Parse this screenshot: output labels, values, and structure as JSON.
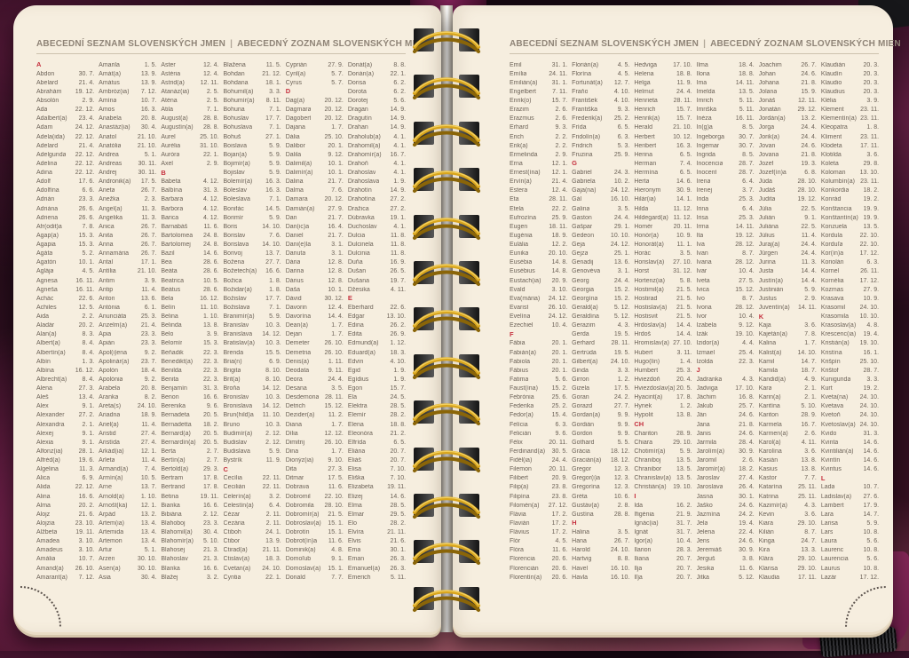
{
  "header": {
    "czech": "ABECEDNÍ SEZNAM SLOVENSKÝCH JMEN",
    "separator": "|",
    "slovak": "ABECEDNÝ ZOZNAM SLOVENSKÝCH MIEN"
  },
  "colors": {
    "page_cream": "#f6eedf",
    "letter_red": "#c5303e",
    "entry_text": "#6c6257",
    "header_text": "#8f8477",
    "spiral_gold": "#d9a51c",
    "cover_magenta": "#8a2a5f"
  },
  "left_page": {
    "columns": [
      [
        "#A",
        "Abdon|30. 7.",
        "Abelard|21. 4.",
        "Abrahám|19. 12.",
        "Absolón|2. 9.",
        "Ada|22. 12.",
        "Adalbert(a)|23. 4.",
        "Adam|24. 12.",
        "Adela(ida)|22. 12.",
        "Adelard|21. 4.",
        "Adelgunda|22. 12.",
        "Adelina|22. 12.",
        "Adina|22. 12.",
        "Adolf|17. 6.",
        "Adolfína|6. 6.",
        "Adrián|23. 3.",
        "Adriána|26. 6.",
        "Adriena|26. 6.",
        "Afr(odit)a|7. 8.",
        "Agap(a)|15. 3.",
        "Agapia|15. 3.",
        "Agáta|5. 2.",
        "Agatón|10. 1.",
        "Aglája|4. 5.",
        "Agnesa|16. 11.",
        "Agneša|16. 11.",
        "Achác|22. 6.",
        "Achiles|12. 5.",
        "Aida|2. 2.",
        "Aladár|20. 2.",
        "Alan(a)|8. 3.",
        "Albert(a)|8. 4.",
        "Albertín(a)|8. 4.",
        "Albín|1. 3.",
        "Albína|16. 12.",
        "Albrecht(a)|8. 4.",
        "Alena|27. 3.",
        "Aleš|13. 4.",
        "Alex|9. 1.",
        "Alexander|27. 2.",
        "Alexandra|2. 1.",
        "Alexej|9. 1.",
        "Alexia|9. 1.",
        "Alfonz(ia)|28. 1.",
        "Alfréd(a)|19. 6.",
        "Algelina|11. 3.",
        "Alica|6. 9.",
        "Alida|22. 12.",
        "Alina|16. 6.",
        "Alma|20. 2.",
        "Alojz|21. 6.",
        "Alojzia|23. 10.",
        "Alžbeta|19. 11.",
        "Amadea|3. 10.",
        "Amadeus|3. 10.",
        "Amália|10. 7.",
        "Amand(a)|26. 10.",
        "Amarant(a)|7. 12."
      ],
      [
        "Amarila|1. 5.",
        "Amát(a)|13. 9.",
        "Amátus|13. 9.",
        "Ambróz(ia)|7. 12.",
        "Amína|10. 7.",
        "Amos|16. 3.",
        "Anabela|20. 8.",
        "Anastáz(ia)|30. 4.",
        "Anatol|21. 10.",
        "Anatólia|21. 10.",
        "Andrea|5. 1.",
        "Andreas|30. 11.",
        "Andrej|30. 11.",
        "Andronik(a)|17. 5.",
        "Aneta|26. 7.",
        "Anežka|2. 3.",
        "Angel(a)|11. 3.",
        "Angelika|11. 3.",
        "Anica|26. 7.",
        "Anita|26. 7.",
        "Anna|26. 7.",
        "Annamária|26. 7.",
        "Antal|17. 1.",
        "Antília|21. 10.",
        "Antim|3. 9.",
        "Antip|11. 4.",
        "Anton|13. 6.",
        "Antónia|6. 1.",
        "Anunciáta|25. 3.",
        "Anzelm(a)|21. 4.",
        "Apia|23. 3.",
        "Apián|23. 3.",
        "Apol(i)ena|9. 2.",
        "Apolinár(a)|23. 7.",
        "Apolón|18. 4.",
        "Apolónia|9. 2.",
        "Arabela|20. 8.",
        "Aranka|8. 2.",
        "Areta(s)|24. 10.",
        "Ariadna|18. 9.",
        "Ariel(a)|11. 4.",
        "Aristid|27. 4.",
        "Aristída|27. 4.",
        "Arkád(ia)|12. 1.",
        "Arleta|11. 4.",
        "Armand(a)|7. 4.",
        "Armín(a)|10. 5.",
        "Arne|13. 7.",
        "Arnold(a)|1. 10.",
        "Arnošt(ka)|12. 1.",
        "Arpád|13. 2.",
        "Artem(ia)|13. 4.",
        "Artemida|13. 4.",
        "Artemon|13. 4.",
        "Artur|5. 1.",
        "Arzen|30. 10.",
        "Asen(a)|30. 10.",
        "Asia|30. 4."
      ],
      [
        "Aster|12. 4.",
        "Astéria|12. 4.",
        "Astrid(a)|12. 11.",
        "Atanáz(ia)|2. 5.",
        "Aténa|2. 5.",
        "Atila|7. 1.",
        "August(a)|28. 8.",
        "Augustín(a)|28. 8.",
        "Aurel|25. 10.",
        "Aurélia|31. 10.",
        "Auróra|22. 1.",
        "Axel|2. 9.",
        "#B",
        "Babeta|4. 12.",
        "Balbína|31. 3.",
        "Barbara|4. 12.",
        "Barbora|4. 12.",
        "Barica|4. 12.",
        "Barnabáš|11. 6.",
        "Bartolomea|24. 8.",
        "Bartolomej|24. 8.",
        "Bazil|14. 6.",
        "Bea|28. 6.",
        "Beáta|28. 6.",
        "Beatrica|10. 5.",
        "Beátus|28. 6.",
        "Bela|16. 12.",
        "Belín|11. 10.",
        "Belina|1. 10.",
        "Belinda|13. 8.",
        "Belo|3. 9.",
        "Belomír|15. 3.",
        "Beňadik|22. 3.",
        "Benedikt(a)|22. 3.",
        "Benilda|22. 3.",
        "Benita|22. 3.",
        "Benjamín|31. 3.",
        "Benon|16. 6.",
        "Berenika|9. 6.",
        "Bernadeta|20. 5.",
        "Bernadetta|18. 2.",
        "Bernard(a)|20. 5.",
        "Bernardín(a)|20. 5.",
        "Berta|2. 7.",
        "Bertín(a)|2. 7.",
        "Bertold(a)|29. 3.",
        "Bertram|17. 8.",
        "Bertrand|17. 8.",
        "Betina|19. 11.",
        "Bianka|16. 6.",
        "Bibiána|2. 12.",
        "Blahoboj|23. 3.",
        "Blahomil(a)|30. 4.",
        "Blahomír(a)|5. 10.",
        "Blahosej|21. 3.",
        "Blahoslav|21. 3.",
        "Blanka|16. 6.",
        "Blažej|3. 2."
      ],
      [
        "Blažena|11. 5.",
        "Bohdan|21. 12.",
        "Bohdana|18. 1.",
        "Bohumil(a)|3. 3.",
        "Bohumír(a)|8. 11.",
        "Bohuna|7. 1.",
        "Bohuslav|17. 7.",
        "Bohuslava|7. 1.",
        "Bohuš|27. 1.",
        "Boislava|5. 9.",
        "Bojan(a)|5. 9.",
        "Bojimír(a)|5. 9.",
        "Bojislav|5. 9.",
        "Bolemír(a)|16. 3.",
        "Boleslav|16. 3.",
        "Boleslava|7. 1.",
        "Bonifác|14. 5.",
        "Borimír|5. 9.",
        "Boris|14. 10.",
        "Borislav|7. 6.",
        "Borislava|14. 10.",
        "Borivoj|13. 7.",
        "Božena|27. 7.",
        "Božetech(a)|16. 6.",
        "Božica|1. 8.",
        "Božidar(a)|1. 8.",
        "Božislav|17. 7.",
        "Božislava|7. 1.",
        "Branimír(a)|5. 9.",
        "Branislav|10. 3.",
        "Branislava|14. 12.",
        "Bratislav(a)|10. 3.",
        "Brenda|15. 5.",
        "Bria(n)|6. 9.",
        "Brigita|8. 10.",
        "Brit(a)|8. 10.",
        "Broňa|14. 12.",
        "Bronislav|10. 3.",
        "Bronislava|14. 12.",
        "Brun(hild)a|11. 10.",
        "Bruno|10. 3.",
        "Budimír(a)|2. 12.",
        "Budislav|2. 12.",
        "Budislava|5. 9.",
        "Bystrík|11. 9.",
        "#C",
        "Cecília|22. 11.",
        "Cecilián|22. 11.",
        "Celerín(a)|3. 2.",
        "Celestín(a)|6. 4.",
        "Cézar|2. 11.",
        "Cezária|2. 11.",
        "Ctiboh|24. 1.",
        "Ctibor|13. 9.",
        "Ctirad(a)|21. 11.",
        "Ctislav(a)|18. 3.",
        "Cvetan(a)|24. 10.",
        "Cyntia|22. 1."
      ],
      [
        "Cyprián|27. 9.",
        "Cyril(a)|5. 7.",
        "Cyrus|5. 7.",
        "#D",
        "Dag(a)|20. 12.",
        "Dagmara|20. 12.",
        "Dagobert|20. 12.",
        "Dajana|1. 7.",
        "Dália|25. 10.",
        "Dalibor|20. 1.",
        "Dalila|9. 12.",
        "Dalimil(a)|10. 1.",
        "Dalimír(a)|10. 1.",
        "Dalina|21. 7.",
        "Dalma|7. 6.",
        "Damara|20. 12.",
        "Damián(a)|27. 9.",
        "Dan|21. 7.",
        "Dan(ic)a|16. 4.",
        "Daniel|21. 7.",
        "Dani(e)la|3. 1.",
        "Danuta|3. 1.",
        "Dária|12. 8.",
        "Darina|12. 8.",
        "Dárius|12. 8.",
        "Daša|10. 1.",
        "Dávid|30. 12.",
        "Davorin|12. 4.",
        "Davorína|14. 4.",
        "Dean(a)|1. 7.",
        "Dejan|1. 7.",
        "Demeter|26. 10.",
        "Demetria|26. 10.",
        "Denis(a)|1. 11.",
        "Deodata|9. 11.",
        "Deora|24. 4.",
        "Desana|3. 5.",
        "Desdemona|28. 11.",
        "Detrich|15. 12.",
        "Dezider(a)|11. 2.",
        "Diana|1. 7.",
        "Dília|12. 12.",
        "Dimitrij|26. 10.",
        "Dina|1. 7.",
        "Dionýz(ia)|9. 10.",
        "Dita|27. 3.",
        "Ditmar|17. 5.",
        "Dobrava|11. 6.",
        "Dobromil|22. 10.",
        "Dobromila|28. 10.",
        "Dobromír(a)|21. 5.",
        "Dobroslav(a)|15. 1.",
        "Dobrotín|15. 1.",
        "Dobrot(ín)a|11. 6.",
        "Dominik(a)|4. 8.",
        "Domoľub|9. 1.",
        "Domoslav(a)|15. 1.",
        "Donald|7. 7."
      ],
      [
        "Donát(a)|8. 8.",
        "Dorián(a)|22. 1.",
        "Dorisa|6. 2.",
        "Dorota|6. 2.",
        "Dorotej|5. 6.",
        "Dragan|14. 9.",
        "Dragutín|14. 9.",
        "Drahan|14. 9.",
        "Draholub(a)|4. 1.",
        "Drahomil(a)|4. 1.",
        "Drahomír(a)|16. 7.",
        "Drahoň|4. 1.",
        "Drahoslav|4. 1.",
        "Drahoslava|1. 9.",
        "Drahotín|14. 9.",
        "Drahotína|27. 2.",
        "Dražica|27. 2.",
        "Dúbravka|19. 1.",
        "Duchoslav|4. 1.",
        "Dulcia|11. 8.",
        "Dulcinela|11. 8.",
        "Dulcinia|11. 8.",
        "Duňa|16. 9.",
        "Dušan|26. 5.",
        "Dušana|19. 7.",
        "Džesika|4. 11.",
        "#E",
        "Eberhard|22. 6.",
        "Edgar|13. 10.",
        "Edina|26. 2.",
        "Edita|26. 9.",
        "Edmund(a)|1. 12.",
        "Eduard(a)|18. 3.",
        "Edvin|4. 10.",
        "Egid|1. 9.",
        "Egídius|1. 9.",
        "Egon|15. 7.",
        "Ela|24. 5.",
        "Elektra|28. 5.",
        "Elemír|28. 2.",
        "Elena|18. 8.",
        "Eleonóra|21. 2.",
        "Elfrída|6. 5.",
        "Eliána|20. 7.",
        "Eliáš|20. 7.",
        "Elisa|7. 10.",
        "Eliška|7. 10.",
        "Elizabeta|19. 11.",
        "Elizej|14. 6.",
        "Elma|28. 5.",
        "Elmar|29. 5.",
        "Elo|28. 2.",
        "Elvíra|21. 11.",
        "Elvis|21. 6.",
        "Ema|30. 1.",
        "Eman|26. 3.",
        "Emanuel(a)|26. 3.",
        "Emerich|5. 11."
      ]
    ]
  },
  "right_page": {
    "columns": [
      [
        "Emil|31. 1.",
        "Emília|24. 11.",
        "Emilián(a)|31. 1.",
        "Engelbert|7. 11.",
        "Enrik(o)|15. 7.",
        "Erazim|2. 6.",
        "Erazmus|2. 6.",
        "Erhard|9. 3.",
        "Erich|2. 2.",
        "Erik(a)|2. 2.",
        "Ermelinda|2. 9.",
        "Erna|12. 1.",
        "Ernest(ína)|12. 1.",
        "Ervín(a)|21. 4.",
        "Estera|12. 4.",
        "Eta|28. 11.",
        "Etela|22. 2.",
        "Eufrozína|25. 9.",
        "Eugen|18. 11.",
        "Eugénia|18. 9.",
        "Eulália|12. 2.",
        "Eunika|20. 10.",
        "Eusébia|14. 8.",
        "Eusébius|14. 8.",
        "Eustach(ia)|20. 9.",
        "Evald|3. 10.",
        "Eva(mária)|24. 12.",
        "Evarist|26. 10.",
        "Evelína|24. 12.",
        "Ezechiel|10. 4.",
        "#F",
        "Fábia|20. 1.",
        "Fabián(a)|20. 1.",
        "Fabiola|20. 1.",
        "Fábius|20. 1.",
        "Fatima|5. 6.",
        "Faust(ína)|15. 2.",
        "Febrónia|25. 6.",
        "Federika|25. 2.",
        "Fedor(a)|15. 4.",
        "Felícia|6. 3.",
        "Felicián|9. 6.",
        "Félix|20. 11.",
        "Ferdinand(a)|30. 5.",
        "Fidél(ia)|24. 4.",
        "Filemon|20. 11.",
        "Filibert|20. 9.",
        "Filip(a)|23. 8.",
        "Filipína|23. 8.",
        "Filomén(a)|27. 12.",
        "Flávia|17. 2.",
        "Flavián|17. 2.",
        "Flávius|17. 2.",
        "Flór|4. 5.",
        "Flóra|11. 6.",
        "Florencia|20. 6.",
        "Florencián|20. 6.",
        "Florentín(a)|20. 6."
      ],
      [
        "Florián(a)|4. 5.",
        "Florína|4. 5.",
        "Fortunát(a)|12. 7.",
        "Fraňo|4. 10.",
        "František|4. 10.",
        "Františka|9. 3.",
        "Frederik(a)|25. 2.",
        "Frída|6. 5.",
        "Fridolín(a)|6. 3.",
        "Fridrich|5. 3.",
        "Fruzina|25. 9.",
        "#G",
        "Gabriel|24. 3.",
        "Gabriela|10. 2.",
        "Gaja(na)|24. 12.",
        "Gál|16. 10.",
        "Galina|3. 5.",
        "Gaston|24. 4.",
        "Gašpar|29. 1.",
        "Gedeon|10. 10.",
        "Geja|24. 12.",
        "Gejza|25. 1.",
        "Genadij|13. 6.",
        "Genovéva|3. 1.",
        "Georg|24. 4.",
        "Georgia|15. 2.",
        "Georgína|15. 2.",
        "Gerald(a)|5. 12.",
        "Geraldína|5. 12.",
        "Gerazim|4. 3.",
        "Gerda|19. 5.",
        "Gerhard|28. 11.",
        "Gertrúda|19. 5.",
        "Gilbert(a)|24. 10.",
        "Ginda|3. 3.",
        "Girron|1. 2.",
        "Gizela|17. 5.",
        "Goran|24. 2.",
        "Gorazd|27. 7.",
        "Gordan(a)|9. 9.",
        "Gordián|9. 9.",
        "Gordon|9. 9.",
        "Gothard|5. 5.",
        "Grácia|18. 12.",
        "Gracián(a)|18. 12.",
        "Gregor|12. 3.",
        "Gregor(i)a|12. 3.",
        "Gregorína|12. 3.",
        "Gréta|10. 6.",
        "Gustáv(a)|2. 8.",
        "Gustína|28. 8.",
        "#H",
        "Halina|3. 5.",
        "Hana|26. 7.",
        "Harold|24. 10.",
        "Hartvig|8. 8.",
        "Havel|16. 10.",
        "Havla|16. 10."
      ],
      [
        "Hedviga|17. 10.",
        "Helena|18. 8.",
        "Helga|11. 9.",
        "Helmut|24. 4.",
        "Henrieta|28. 11.",
        "Henrich|15. 7.",
        "Henrik(a)|15. 7.",
        "Herald|21. 10.",
        "Herbert|10. 12.",
        "Heribert|16. 3.",
        "Herina|6. 5.",
        "Herman|7. 4.",
        "Hermína|6. 5.",
        "Herta|14. 6.",
        "Hieronym|30. 9.",
        "Hilár(ia)|14. 1.",
        "Hilda|11. 12.",
        "Hildegard(a)|11. 12.",
        "Homér|20. 11.",
        "Honór(a)|10. 9.",
        "Honorát(a)|11. 1.",
        "Horác|3. 5.",
        "Horislav(a)|27. 10.",
        "Horst|31. 12.",
        "Hortenz(ia)|5. 8.",
        "Hostimil(a)|21. 5.",
        "Hostirad|21. 5.",
        "Hostislav(a)|21. 5.",
        "Hostisvit|21. 5.",
        "Hrdoslav(a)|14. 4.",
        "Hrdoš|14. 4.",
        "Hromislav(a)|27. 10.",
        "Hubert|3. 11.",
        "Hugo(lín)|1. 4.",
        "Humbert|25. 3.",
        "Hviezdoň|20. 4.",
        "Hviezdoslav(a)|20. 5.",
        "Hyacint(a)|17. 8.",
        "Hynek|1. 2.",
        "Hypolit|13. 8.",
        "#CH",
        "Chariton|28. 9.",
        "Chiara|29. 10.",
        "Chotimír(a)|5. 9.",
        "Chraniboj|13. 5.",
        "Chranibor|13. 5.",
        "Chranislav(a)|13. 5.",
        "Christián(a)|19. 10.",
        "#I",
        "Ida|16. 2.",
        "Ifigénia|21. 9.",
        "Ignác(ia)|31. 7.",
        "Ignát|31. 7.",
        "Igor(a)|10. 4.",
        "Ilarion|28. 3.",
        "Iliana|20. 7.",
        "Ilja|20. 7.",
        "Iľja|20. 7."
      ],
      [
        "Ilma|18. 4.",
        "Ilona|18. 8.",
        "Ima|14. 11.",
        "Imelda|13. 5.",
        "Imrich|5. 11.",
        "Imriška|5. 11.",
        "Inéza|16. 11.",
        "In(g)a|8. 5.",
        "Ingeborga|30. 7.",
        "Ingemar|30. 7.",
        "Ingrida|8. 5.",
        "Inocencia|28. 7.",
        "Inocent|28. 7.",
        "Irena|6. 4.",
        "Irenej|3. 7.",
        "Irida|25. 3.",
        "Irina|6. 4.",
        "Irisa|25. 3.",
        "Irma|14. 11.",
        "Ita|19. 12.",
        "Iva|28. 12.",
        "Ivan|8. 7.",
        "Ivana|28. 12.",
        "Ivar|10. 4.",
        "Iveta|27. 5.",
        "Ivica|15. 12.",
        "Ivo|8. 7.",
        "Ivona|28. 12.",
        "Ivor|10. 4.",
        "Izabela|9. 12.",
        "Izák|19. 10.",
        "Izidor(a)|4. 4.",
        "Izmael|25. 4.",
        "Izolda|22. 3.",
        "#J",
        "Jadranka|4. 3.",
        "Jadviga|17. 10.",
        "Jáchim|16. 8.",
        "Jakub|25. 7.",
        "Ján|24. 6.",
        "Jana|21. 8.",
        "Janis|24. 6.",
        "Jarmila|28. 4.",
        "Jarolím(a)|30. 9.",
        "Jaromil|2. 6.",
        "Jaromír(a)|18. 2.",
        "Jaroslav|27. 4.",
        "Jaroslava|26. 4.",
        "Jasna|30. 1.",
        "Jaško|24. 6.",
        "Jazmína|24. 2.",
        "Jela|19. 4.",
        "Jelena|22. 4.",
        "Jens|24. 6.",
        "Jeremiáš|30. 9.",
        "Jerguš|3. 8.",
        "Jesika|11. 6.",
        "Jitka|5. 12."
      ],
      [
        "Joachim|26. 7.",
        "Johan|24. 6.",
        "Johana|21. 8.",
        "Jolana|15. 9.",
        "Jonáš|12. 11.",
        "Jonatán|29. 12.",
        "Jordán(a)|13. 2.",
        "Jorga|24. 4.",
        "Jorik(a)|24. 4.",
        "Jovan|24. 6.",
        "Jovana|21. 8.",
        "Jozef|19. 3.",
        "Jozef(ín)a|6. 8.",
        "Júda|28. 10.",
        "Judáš|28. 10.",
        "Judita|19. 12.",
        "Júlia|22. 5.",
        "Julián|9. 1.",
        "Juliána|22. 5.",
        "Július|11. 4.",
        "Juraj(a)|24. 4.",
        "Jürgen|24. 4.",
        "Jurina|11. 3.",
        "Justa|14. 4.",
        "Justín(a)|14. 4.",
        "Justinián|5. 9.",
        "Justus|2. 9.",
        "Juventín(a)|14. 11.",
        "#K",
        "Kaja|3. 6.",
        "Kajetán(a)|7. 8.",
        "Kalina|1. 7.",
        "Kalist(a)|14. 10.",
        "Kamil|14. 7.",
        "Kamila|18. 7.",
        "Kandid(a)|4. 9.",
        "Kara|2. 1.",
        "Karin(a)|2. 1.",
        "Karitína|5. 10.",
        "Kariton|28. 9.",
        "Karmela|16. 7.",
        "Karmen(a)|2. 6.",
        "Karol(a)|4. 11.",
        "Karolína|3. 6.",
        "Kasián|13. 8.",
        "Kasius|13. 8.",
        "Kastor|7. 7.",
        "Katarína|25. 11.",
        "Katrina|25. 11.",
        "Kazimír(a)|4. 3.",
        "Kevin|3. 6.",
        "Kiara|29. 10.",
        "Kilián|8. 7.",
        "Kinga|24. 7.",
        "Kira|13. 3.",
        "Klára|29. 10.",
        "Klarisa|29. 10.",
        "Klaudia|17. 11."
      ],
      [
        "Klaudián|20. 3.",
        "Klaudín|20. 3.",
        "Klaudio|20. 3.",
        "Klaudius|20. 3.",
        "Klélia|3. 9.",
        "Klement|23. 11.",
        "Klementín(a)|23. 11.",
        "Kleopatra|1. 8.",
        "Kliment|23. 11.",
        "Klodeta|17. 11.",
        "Klotilda|3. 6.",
        "Koleta|29. 8.",
        "Koloman|13. 10.",
        "Kolumbín(a)|23. 11.",
        "Konkordia|18. 2.",
        "Konrád|19. 2.",
        "Konštancia|19. 9.",
        "Konštantín(a)|19. 9.",
        "Konzuela|13. 5.",
        "Kordula|22. 10.",
        "Korduľa|22. 10.",
        "Kor(ín)a|17. 12.",
        "Koriolán|6. 3.",
        "Kornel|26. 11.",
        "Kornélia|17. 12.",
        "Kozmas|27. 9.",
        "Krasava|10. 9.",
        "Krasomil|24. 10.",
        "Krasomila|10. 10.",
        "Krasoslav(a)|4. 8.",
        "Krescenc(ia)|19. 4.",
        "Kristián(a)|19. 10.",
        "Kristína|16. 1.",
        "Krišpín|25. 10.",
        "Krištof|28. 7.",
        "Kunigunda|3. 3.",
        "Kurt|19. 2.",
        "Kveta(na)|24. 10.",
        "Kvetava|24. 10.",
        "Kvetoň|24. 10.",
        "Kvetoslav(a)|24. 10.",
        "Kvido|31. 3.",
        "Kvinta|14. 6.",
        "Kvintilián(a)|14. 6.",
        "Kvintín|14. 6.",
        "Kvintus|14. 6.",
        "#L",
        "Lada|10. 7.",
        "Ladislav(a)|27. 6.",
        "Lambert|17. 9.",
        "Lara|14. 7.",
        "Larisa|5. 9.",
        "Lars|10. 8.",
        "Laura|5. 6.",
        "Laurenc|10. 8.",
        "Laurencia|5. 6.",
        "Laurus|10. 8.",
        "Lazár|17. 12."
      ]
    ]
  }
}
